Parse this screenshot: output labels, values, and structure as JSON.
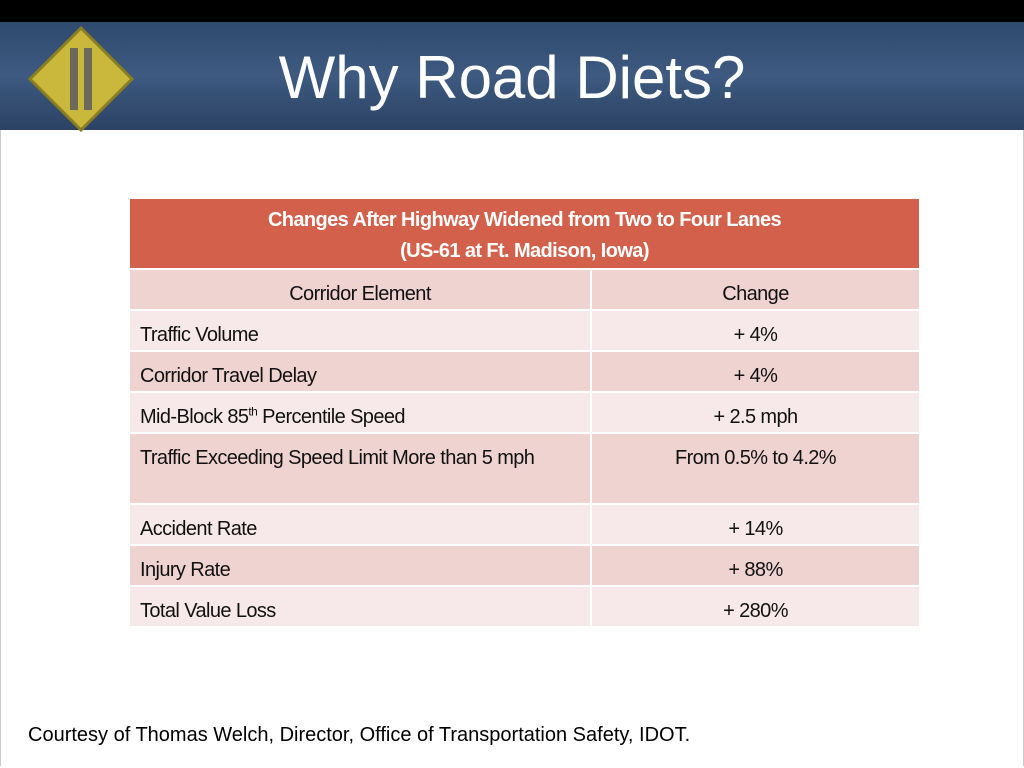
{
  "header": {
    "title": "Why Road Diets?"
  },
  "table": {
    "caption": [
      "Changes After Highway Widened from Two to Four Lanes",
      "(US-61 at Ft. Madison, Iowa)"
    ],
    "columns": [
      "Corridor Element",
      "Change"
    ],
    "rows": [
      [
        "Traffic Volume",
        "+ 4%"
      ],
      [
        "Corridor Travel Delay",
        "+ 4%"
      ],
      [
        [
          "Mid-Block 85",
          "th",
          " Percentile Speed"
        ],
        "+ 2.5 mph"
      ],
      [
        "Traffic Exceeding Speed Limit More than 5 mph",
        "From 0.5% to 4.2%"
      ],
      [
        "Accident Rate",
        "+ 14%"
      ],
      [
        "Injury Rate",
        "+ 88%"
      ],
      [
        "Total Value Loss",
        "+ 280%"
      ]
    ]
  },
  "footer": {
    "text": "Courtesy of Thomas Welch, Director, Office of Transportation Safety, IDOT."
  }
}
